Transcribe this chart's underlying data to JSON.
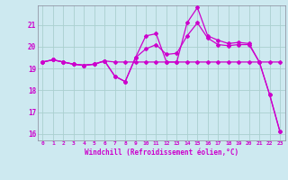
{
  "xlabel": "Windchill (Refroidissement éolien,°C)",
  "background_color": "#cde9f0",
  "grid_color": "#aacfcf",
  "line_color": "#cc00cc",
  "x": [
    0,
    1,
    2,
    3,
    4,
    5,
    6,
    7,
    8,
    9,
    10,
    11,
    12,
    13,
    14,
    15,
    16,
    17,
    18,
    19,
    20,
    21,
    22,
    23
  ],
  "line_flat": [
    19.3,
    19.4,
    19.3,
    19.2,
    19.15,
    19.2,
    19.35,
    19.3,
    19.3,
    19.3,
    19.3,
    19.3,
    19.3,
    19.3,
    19.3,
    19.3,
    19.3,
    19.3,
    19.3,
    19.3,
    19.3,
    19.3,
    19.3,
    19.3
  ],
  "line_data": [
    19.3,
    19.4,
    19.3,
    19.2,
    19.15,
    19.2,
    19.35,
    18.65,
    18.4,
    19.5,
    20.5,
    20.6,
    19.3,
    19.3,
    21.1,
    21.8,
    20.5,
    20.3,
    20.15,
    20.2,
    20.15,
    19.3,
    17.8,
    16.1
  ],
  "line_diag": [
    19.3,
    19.4,
    19.3,
    19.2,
    19.15,
    19.2,
    19.35,
    18.65,
    18.4,
    19.5,
    19.9,
    20.1,
    19.65,
    19.7,
    20.5,
    21.1,
    20.4,
    20.1,
    20.05,
    20.1,
    20.1,
    19.3,
    17.8,
    16.1
  ],
  "ylim": [
    15.7,
    21.9
  ],
  "yticks": [
    16,
    17,
    18,
    19,
    20,
    21
  ],
  "xlim": [
    -0.5,
    23.5
  ]
}
